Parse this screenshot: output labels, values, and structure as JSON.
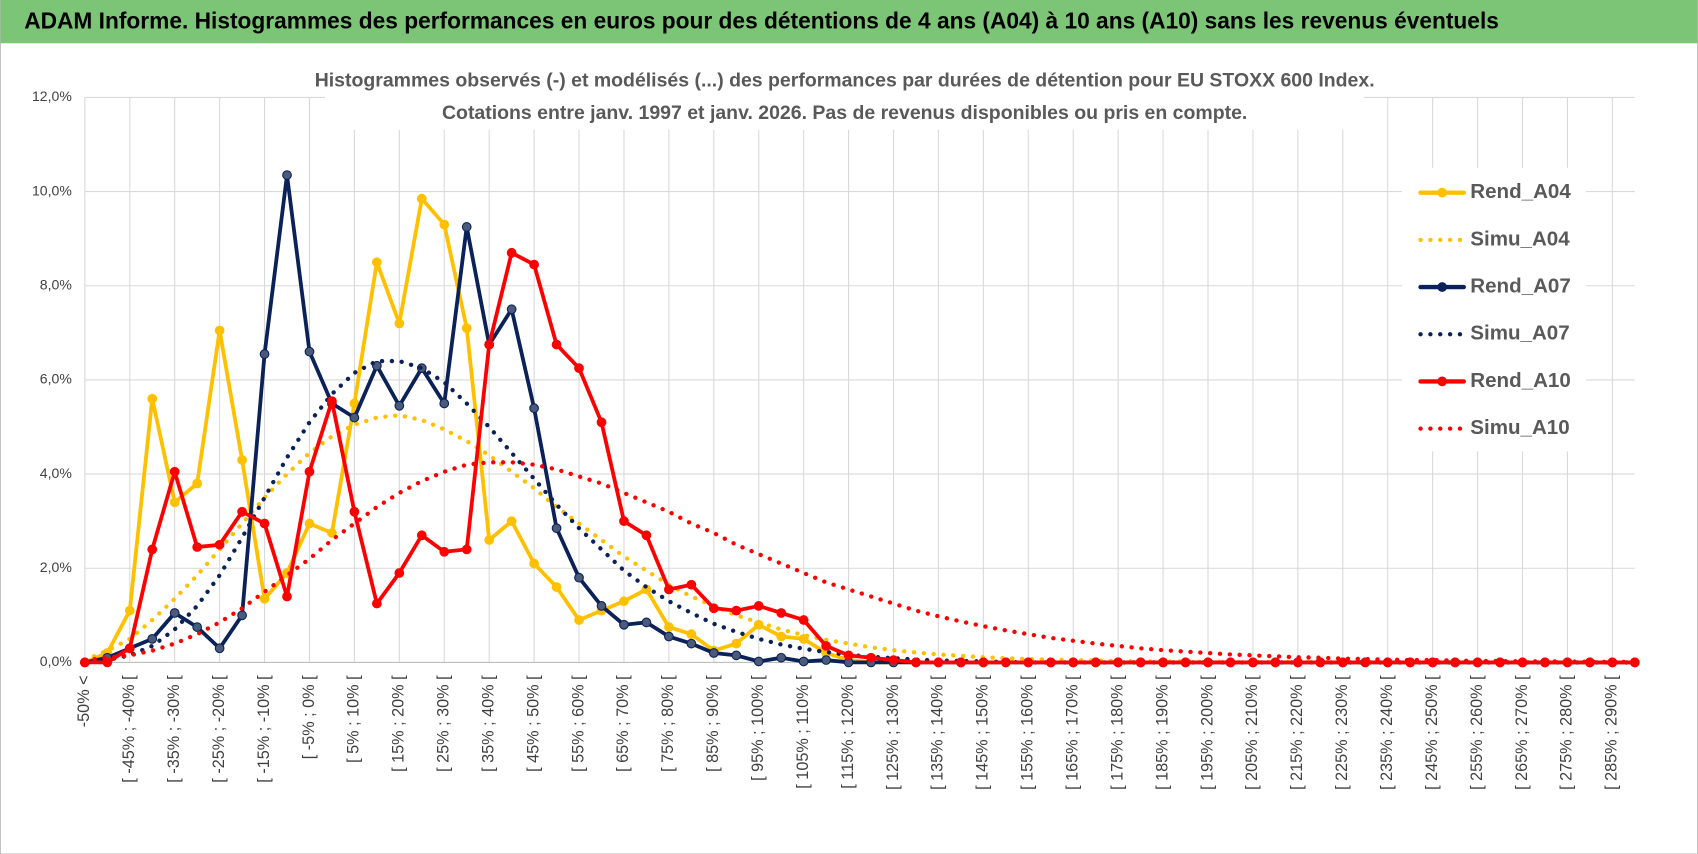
{
  "header": {
    "title": "ADAM Informe. Histogrammes des performances en euros pour des détentions de 4 ans (A04) à 10 ans (A10) sans les revenus éventuels"
  },
  "chart_data": {
    "type": "line",
    "title": [
      "Histogrammes observés (-) et modélisés (...) des performances par durées de détention pour EU STOXX 600 Index.",
      "Cotations entre janv. 1997 et janv. 2026. Pas de revenus disponibles ou pris en compte."
    ],
    "categories": [
      "-50% <",
      null,
      "[ -45% ; -40% [",
      null,
      "[ -35% ; -30% [",
      null,
      "[ -25% ; -20% [",
      null,
      "[ -15% ; -10% [",
      null,
      "[ -5% ; 0% [",
      null,
      "[ 5% ; 10% [",
      null,
      "[ 15% ; 20% [",
      null,
      "[ 25% ; 30% [",
      null,
      "[ 35% ; 40% [",
      null,
      "[ 45% ; 50% [",
      null,
      "[ 55% ; 60% [",
      null,
      "[ 65% ; 70% [",
      null,
      "[ 75% ; 80% [",
      null,
      "[ 85% ; 90% [",
      null,
      "[ 95% ; 100% [",
      null,
      "[ 105% ; 110% [",
      null,
      "[ 115% ; 120% [",
      null,
      "[ 125% ; 130% [",
      null,
      "[ 135% ; 140% [",
      null,
      "[ 145% ; 150% [",
      null,
      "[ 155% ; 160% [",
      null,
      "[ 165% ; 170% [",
      null,
      "[ 175% ; 180% [",
      null,
      "[ 185% ; 190% [",
      null,
      "[ 195% ; 200% [",
      null,
      "[ 205% ; 210% [",
      null,
      "[ 215% ; 220% [",
      null,
      "[ 225% ; 230% [",
      null,
      "[ 235% ; 240% [",
      null,
      "[ 245% ; 250% [",
      null,
      "[ 255% ; 260% [",
      null,
      "[ 265% ; 270% [",
      null,
      "[ 275% ; 280% [",
      null,
      "[ 285% ; 290% [",
      null
    ],
    "series": [
      {
        "name": "Rend_A04",
        "color": "#FFC000",
        "style": "solid",
        "markers": true,
        "values": [
          0,
          0.2,
          1.1,
          5.6,
          3.4,
          3.8,
          7.05,
          4.3,
          1.35,
          1.9,
          2.95,
          2.75,
          5.5,
          8.5,
          7.2,
          9.85,
          9.3,
          7.1,
          2.6,
          3.0,
          2.1,
          1.6,
          0.9,
          1.1,
          1.3,
          1.55,
          0.75,
          0.6,
          0.25,
          0.4,
          0.8,
          0.55,
          0.5,
          0.2,
          0.05,
          0,
          0,
          0,
          0,
          0,
          0,
          0,
          0,
          0,
          0,
          0,
          0,
          0,
          0,
          0,
          0,
          0,
          0,
          0,
          0,
          0,
          0,
          0,
          0,
          0,
          0,
          0,
          0,
          0,
          0,
          0,
          0,
          0,
          0,
          0
        ]
      },
      {
        "name": "Simu_A04",
        "color": "#FFC000",
        "style": "dotted",
        "markers": false,
        "values": [
          0.05,
          0.25,
          0.5,
          0.9,
          1.35,
          1.85,
          2.4,
          2.95,
          3.5,
          4.0,
          4.45,
          4.8,
          5.05,
          5.2,
          5.25,
          5.15,
          4.95,
          4.7,
          4.4,
          4.05,
          3.7,
          3.3,
          2.95,
          2.6,
          2.25,
          1.95,
          1.65,
          1.4,
          1.2,
          1.0,
          0.85,
          0.7,
          0.58,
          0.48,
          0.4,
          0.32,
          0.26,
          0.21,
          0.17,
          0.14,
          0.11,
          0.09,
          0.07,
          0.06,
          0.05,
          0.04,
          0.03,
          0.02,
          0.02,
          0.02,
          0.01,
          0.01,
          0.01,
          0.01,
          0.01,
          0.01,
          0.01,
          0.01,
          0.01,
          0.01,
          0.01,
          0.01,
          0.01,
          0.01,
          0.01,
          0,
          0,
          0,
          0,
          0
        ]
      },
      {
        "name": "Rend_A07",
        "color": "#0B2259",
        "style": "solid",
        "markers": true,
        "values": [
          0,
          0.1,
          0.3,
          0.5,
          1.05,
          0.75,
          0.3,
          1.0,
          6.55,
          10.35,
          6.6,
          5.5,
          5.2,
          6.3,
          5.45,
          6.25,
          5.5,
          9.25,
          6.75,
          7.5,
          5.4,
          2.85,
          1.8,
          1.2,
          0.8,
          0.85,
          0.55,
          0.4,
          0.2,
          0.15,
          0.02,
          0.1,
          0.02,
          0.05,
          0,
          0,
          0,
          0,
          0,
          0,
          0,
          0,
          0,
          0,
          0,
          0,
          0,
          0,
          0,
          0,
          0,
          0,
          0,
          0,
          0,
          0,
          0,
          0,
          0,
          0,
          0,
          0,
          0,
          0,
          0,
          0,
          0,
          0,
          0,
          0
        ]
      },
      {
        "name": "Simu_A07",
        "color": "#0B2259",
        "style": "dotted",
        "markers": false,
        "values": [
          0,
          0.05,
          0.15,
          0.35,
          0.7,
          1.2,
          1.85,
          2.65,
          3.5,
          4.35,
          5.1,
          5.7,
          6.15,
          6.4,
          6.4,
          6.25,
          5.95,
          5.5,
          5.0,
          4.45,
          3.9,
          3.35,
          2.85,
          2.4,
          1.95,
          1.6,
          1.3,
          1.05,
          0.82,
          0.65,
          0.5,
          0.38,
          0.29,
          0.22,
          0.16,
          0.12,
          0.09,
          0.06,
          0.04,
          0.03,
          0.02,
          0.01,
          0,
          0,
          0,
          0,
          0,
          0,
          0,
          0,
          0,
          0,
          0,
          0,
          0,
          0,
          0,
          0,
          0,
          0,
          0,
          0,
          0,
          0,
          0,
          0,
          0,
          0,
          0,
          0
        ]
      },
      {
        "name": "Rend_A10",
        "color": "#FF0000",
        "style": "solid",
        "markers": true,
        "values": [
          0,
          0,
          0.3,
          2.4,
          4.05,
          2.45,
          2.5,
          3.2,
          2.95,
          1.4,
          4.05,
          5.55,
          3.2,
          1.25,
          1.9,
          2.7,
          2.35,
          2.4,
          6.75,
          8.7,
          8.45,
          6.75,
          6.25,
          5.1,
          3.0,
          2.7,
          1.55,
          1.65,
          1.15,
          1.1,
          1.2,
          1.05,
          0.9,
          0.35,
          0.15,
          0.1,
          0.05,
          0,
          0,
          0,
          0,
          0,
          0,
          0,
          0,
          0,
          0,
          0,
          0,
          0,
          0,
          0,
          0,
          0,
          0,
          0,
          0,
          0,
          0,
          0,
          0,
          0,
          0,
          0,
          0,
          0,
          0,
          0,
          0,
          0
        ]
      },
      {
        "name": "Simu_A10",
        "color": "#FF0000",
        "style": "dotted",
        "markers": false,
        "values": [
          0.05,
          0.1,
          0.15,
          0.25,
          0.4,
          0.6,
          0.85,
          1.15,
          1.5,
          1.85,
          2.2,
          2.6,
          2.95,
          3.3,
          3.6,
          3.85,
          4.05,
          4.2,
          4.25,
          4.25,
          4.2,
          4.1,
          3.95,
          3.8,
          3.6,
          3.4,
          3.2,
          2.95,
          2.75,
          2.5,
          2.3,
          2.1,
          1.9,
          1.7,
          1.55,
          1.4,
          1.25,
          1.1,
          0.98,
          0.87,
          0.77,
          0.68,
          0.6,
          0.52,
          0.46,
          0.4,
          0.35,
          0.3,
          0.26,
          0.23,
          0.2,
          0.17,
          0.15,
          0.13,
          0.11,
          0.1,
          0.08,
          0.07,
          0.06,
          0.05,
          0.05,
          0.04,
          0.03,
          0.03,
          0.02,
          0.02,
          0.02,
          0.01,
          0.01,
          0.01
        ]
      }
    ],
    "ylim": [
      0,
      12
    ],
    "yticks": [
      {
        "value": 0,
        "label": "0,0%"
      },
      {
        "value": 2,
        "label": "2,0%"
      },
      {
        "value": 4,
        "label": "4,0%"
      },
      {
        "value": 6,
        "label": "6,0%"
      },
      {
        "value": 8,
        "label": "8,0%"
      },
      {
        "value": 10,
        "label": "10,0%"
      },
      {
        "value": 12,
        "label": "12,0%"
      }
    ],
    "grid": true,
    "legend": "right"
  }
}
